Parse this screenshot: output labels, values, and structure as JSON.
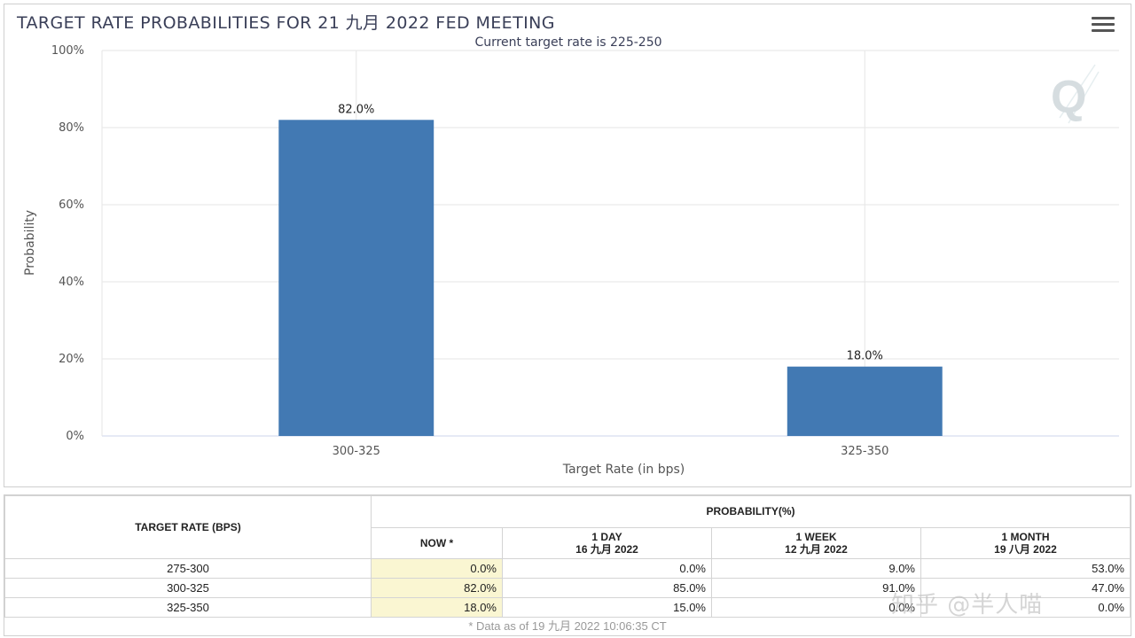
{
  "chart_data": {
    "type": "bar",
    "title": "TARGET RATE PROBABILITIES FOR 21 九月 2022 FED MEETING",
    "subtitle": "Current target rate is 225-250",
    "xlabel": "Target Rate (in bps)",
    "ylabel": "Probability",
    "categories": [
      "300-325",
      "325-350"
    ],
    "values": [
      82.0,
      18.0
    ],
    "data_labels": [
      "82.0%",
      "18.0%"
    ],
    "ylim": [
      0,
      100
    ],
    "yticks": [
      0,
      20,
      40,
      60,
      80,
      100
    ],
    "ytick_labels": [
      "0%",
      "20%",
      "40%",
      "60%",
      "80%",
      "100%"
    ],
    "grid": true,
    "bar_color": "#4279b3"
  },
  "chart_menu_icon": "hamburger-menu-icon",
  "table": {
    "rate_header": "TARGET RATE (BPS)",
    "probability_header": "PROBABILITY(%)",
    "columns": [
      {
        "line1": "NOW *",
        "line2": ""
      },
      {
        "line1": "1 DAY",
        "line2": "16 九月 2022"
      },
      {
        "line1": "1 WEEK",
        "line2": "12 九月 2022"
      },
      {
        "line1": "1 MONTH",
        "line2": "19 八月 2022"
      }
    ],
    "rows": [
      {
        "rate": "275-300",
        "now": "0.0%",
        "day": "0.0%",
        "week": "9.0%",
        "month": "53.0%"
      },
      {
        "rate": "300-325",
        "now": "82.0%",
        "day": "85.0%",
        "week": "91.0%",
        "month": "47.0%"
      },
      {
        "rate": "325-350",
        "now": "18.0%",
        "day": "15.0%",
        "week": "0.0%",
        "month": "0.0%"
      }
    ],
    "footnote": "* Data as of 19 九月 2022 10:06:35 CT"
  },
  "watermark": "知乎 @半人喵"
}
